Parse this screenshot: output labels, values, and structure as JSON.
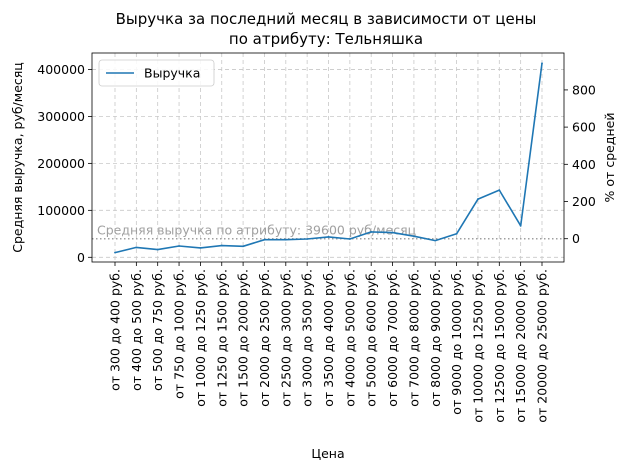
{
  "chart_data": {
    "type": "line",
    "title_line1": "Выручка за последний месяц в зависимости от цены",
    "title_line2": "по атрибуту: Тельняшка",
    "xlabel": "Цена",
    "ylabel": "Средняя выручка, руб/месяц",
    "ylabel_right": "% от средней",
    "categories": [
      "от 300 до 400 руб.",
      "от 400 до 500 руб.",
      "от 500 до 750 руб.",
      "от 750 до 1000 руб.",
      "от 1000 до 1250 руб.",
      "от 1250 до 1500 руб.",
      "от 1500 до 2000 руб.",
      "от 2000 до 2500 руб.",
      "от 2500 до 3000 руб.",
      "от 3000 до 3500 руб.",
      "от 3500 до 4000 руб.",
      "от 4000 до 5000 руб.",
      "от 5000 до 6000 руб.",
      "от 6000 до 7000 руб.",
      "от 7000 до 8000 руб.",
      "от 8000 до 9000 руб.",
      "от 9000 до 10000 руб.",
      "от 10000 до 12500 руб.",
      "от 12500 до 15000 руб.",
      "от 15000 до 20000 руб.",
      "от 20000 до 25000 руб."
    ],
    "series": [
      {
        "name": "Выручка",
        "color": "#1f77b4",
        "values": [
          10000,
          21000,
          16500,
          24000,
          20000,
          25000,
          23500,
          37500,
          37500,
          39000,
          43500,
          39000,
          54000,
          52500,
          45000,
          35500,
          50000,
          124000,
          143000,
          67000,
          413000
        ]
      }
    ],
    "ylim": [
      -10000,
      435000
    ],
    "yticks": [
      0,
      100000,
      200000,
      300000,
      400000
    ],
    "ytick_labels": [
      "0",
      "100000",
      "200000",
      "300000",
      "400000"
    ],
    "right_axis": {
      "ticks": [
        0,
        200,
        400,
        600,
        800
      ],
      "tick_labels": [
        "0",
        "200",
        "400",
        "600",
        "800"
      ]
    },
    "average": {
      "value": 39600,
      "label": "Средняя выручка по атрибуту: 39600 руб/месяц",
      "color": "#a0a0a0"
    },
    "legend_position": "top-left",
    "grid": true
  }
}
